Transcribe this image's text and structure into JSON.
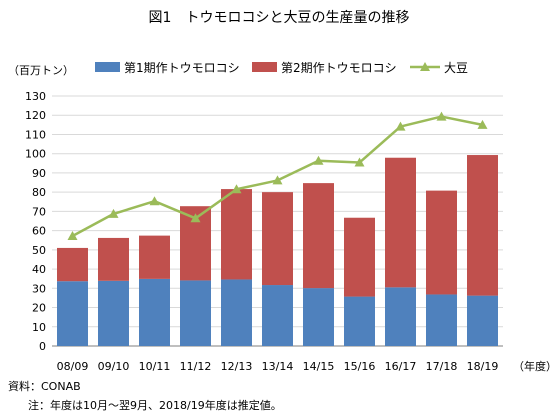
{
  "chart_data": {
    "type": "bar",
    "title": "図1　トウモロコシと大豆の生産量の推移",
    "ylabel": "（百万トン）",
    "xlabel": "（年度）",
    "ylim": [
      0,
      130
    ],
    "yticks": [
      0,
      10,
      20,
      30,
      40,
      50,
      60,
      70,
      80,
      90,
      100,
      110,
      120,
      130
    ],
    "categories": [
      "08/09",
      "09/10",
      "10/11",
      "11/12",
      "12/13",
      "13/14",
      "14/15",
      "15/16",
      "16/17",
      "17/18",
      "18/19"
    ],
    "stacked": true,
    "grid": true,
    "legend_position": "top",
    "series": [
      {
        "name": "第1期作トウモロコシ",
        "type": "bar",
        "color": "#4f81bd",
        "values": [
          33.7,
          33.9,
          34.9,
          34.1,
          34.6,
          31.7,
          30.1,
          25.7,
          30.5,
          26.8,
          26.2
        ]
      },
      {
        "name": "第2期作トウモロコシ",
        "type": "bar",
        "color": "#c0504d",
        "values": [
          17.3,
          22.3,
          22.5,
          38.6,
          47.0,
          48.3,
          54.6,
          41.0,
          67.4,
          54.0,
          73.1
        ]
      },
      {
        "name": "大豆",
        "type": "line",
        "color": "#9bbb59",
        "values": [
          57.2,
          68.7,
          75.3,
          66.4,
          81.5,
          86.1,
          96.3,
          95.4,
          114.1,
          119.3,
          115.0
        ]
      }
    ],
    "notes": [
      "資料：CONAB",
      "注：年度は10月～翌9月、2018/19年度は推定値。"
    ]
  }
}
